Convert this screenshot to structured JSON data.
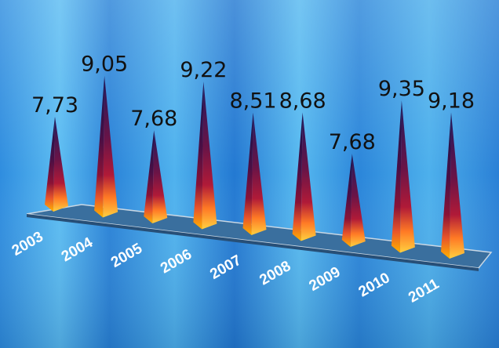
{
  "chart_data": {
    "type": "bar",
    "style": "3d-pyramid",
    "categories": [
      "2003",
      "2004",
      "2005",
      "2006",
      "2007",
      "2008",
      "2009",
      "2010",
      "2011"
    ],
    "values": [
      7.73,
      9.05,
      7.68,
      9.22,
      8.51,
      8.68,
      7.68,
      9.35,
      9.18
    ],
    "value_labels": [
      "7,73",
      "9,05",
      "7,68",
      "9,22",
      "8,51",
      "8,68",
      "7,68",
      "9,35",
      "9,18"
    ],
    "title": "",
    "xlabel": "",
    "ylabel": "",
    "ylim": [
      0,
      9.5
    ],
    "grid": false,
    "legend": "none"
  },
  "colors": {
    "background": "#3f9fe6",
    "floor": "#3a6f9e",
    "pyramid_top": "#1a1650",
    "pyramid_mid": "#7a0f3d",
    "pyramid_base": "#ffb000",
    "value_label": "#111111",
    "category_label": "#ffffff"
  }
}
